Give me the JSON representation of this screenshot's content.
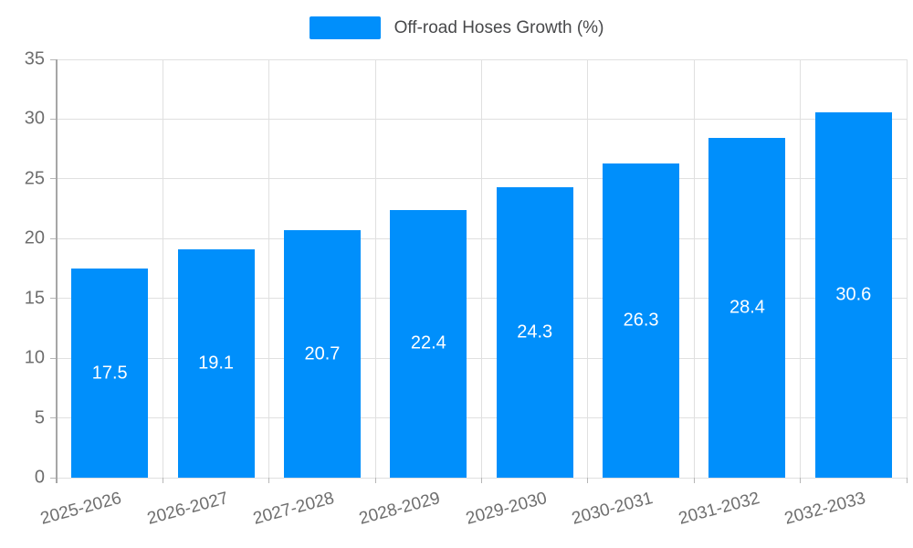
{
  "chart_data": {
    "type": "bar",
    "title": "",
    "xlabel": "",
    "ylabel": "",
    "legend": {
      "label": "Off-road Hoses Growth (%)",
      "position": "top"
    },
    "categories": [
      "2025-2026",
      "2026-2027",
      "2027-2028",
      "2028-2029",
      "2029-2030",
      "2030-2031",
      "2031-2032",
      "2032-2033"
    ],
    "series": [
      {
        "name": "Off-road Hoses Growth (%)",
        "values": [
          17.5,
          19.1,
          20.7,
          22.4,
          24.3,
          26.3,
          28.4,
          30.6
        ]
      }
    ],
    "data_labels": [
      "17.5",
      "19.1",
      "20.7",
      "22.4",
      "24.3",
      "26.3",
      "28.4",
      "30.6"
    ],
    "yticks": [
      0,
      5,
      10,
      15,
      20,
      25,
      30,
      35
    ],
    "ylim": [
      0,
      35
    ],
    "grid": "horizontal and vertical",
    "colors": {
      "bar": "#008FFB",
      "bar_value_label": "#ffffff",
      "grid_line": "#e0e0e0",
      "axis_line": "#a6a6a6",
      "tick": "#b6b6b6",
      "axis_label_text": "#6e6e6e",
      "legend_text": "#48494b",
      "background": "#ffffff"
    }
  }
}
